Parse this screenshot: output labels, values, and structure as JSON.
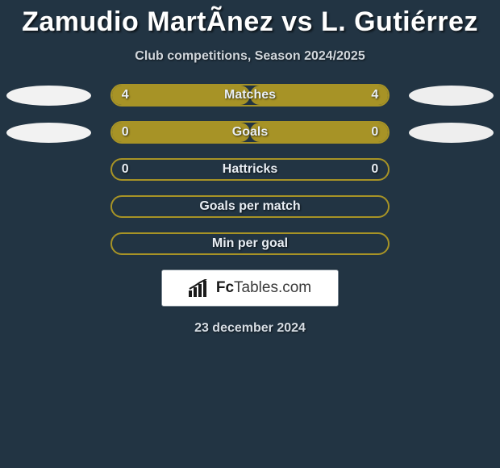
{
  "title": "Zamudio MartÃnez vs L. Gutiérrez",
  "subtitle": "Club competitions, Season 2024/2025",
  "date": "23 december 2024",
  "colors": {
    "background": "#223443",
    "player1": "#f2f2f2",
    "player2": "#eeeeee",
    "bar_fill": "#a79326",
    "bar_border": "#a79326",
    "bar_inner_bg": "transparent",
    "text": "#e8eef4"
  },
  "rows": [
    {
      "label": "Matches",
      "left_value": "4",
      "right_value": "4",
      "left_ellipse": true,
      "right_ellipse": true,
      "left_fill_pct": 50,
      "right_fill_pct": 50
    },
    {
      "label": "Goals",
      "left_value": "0",
      "right_value": "0",
      "left_ellipse": true,
      "right_ellipse": true,
      "left_fill_pct": 50,
      "right_fill_pct": 50
    },
    {
      "label": "Hattricks",
      "left_value": "0",
      "right_value": "0",
      "left_ellipse": false,
      "right_ellipse": false,
      "left_fill_pct": 0,
      "right_fill_pct": 0
    },
    {
      "label": "Goals per match",
      "left_value": "",
      "right_value": "",
      "left_ellipse": false,
      "right_ellipse": false,
      "left_fill_pct": 0,
      "right_fill_pct": 0
    },
    {
      "label": "Min per goal",
      "left_value": "",
      "right_value": "",
      "left_ellipse": false,
      "right_ellipse": false,
      "left_fill_pct": 0,
      "right_fill_pct": 0
    }
  ],
  "footer_brand": {
    "prefix": "Fc",
    "suffix": "Tables.com"
  }
}
